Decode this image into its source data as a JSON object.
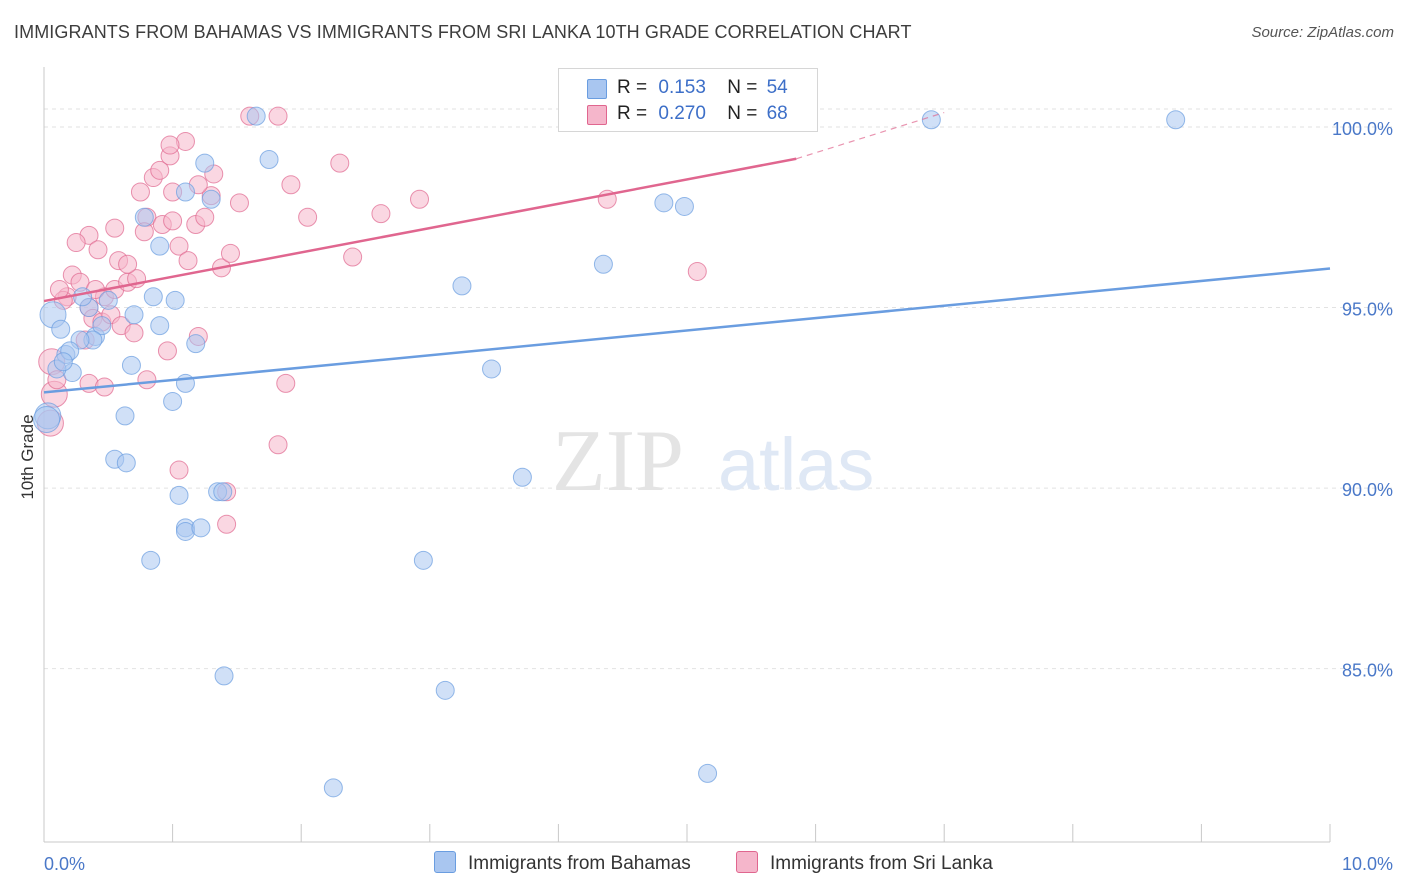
{
  "title": "IMMIGRANTS FROM BAHAMAS VS IMMIGRANTS FROM SRI LANKA 10TH GRADE CORRELATION CHART",
  "source": "Source: ZipAtlas.com",
  "watermark": {
    "zip": "ZIP",
    "atlas": "atlas"
  },
  "legend": {
    "rows": [
      {
        "r_label": "R =",
        "r_value": "0.153",
        "n_label": "N =",
        "n_value": "54",
        "color": "#a9c6f0"
      },
      {
        "r_label": "R =",
        "r_value": "0.270",
        "n_label": "N =",
        "n_value": "68",
        "color": "#f5b6cb"
      }
    ]
  },
  "bottom_legend": {
    "series1": "Immigrants from Bahamas",
    "series2": "Immigrants from Sri Lanka"
  },
  "chart_data": {
    "type": "scatter",
    "title": "IMMIGRANTS FROM BAHAMAS VS IMMIGRANTS FROM SRI LANKA 10TH GRADE CORRELATION CHART",
    "xlabel": "",
    "ylabel": "10th Grade",
    "xlim": [
      0,
      10
    ],
    "ylim": [
      80.2,
      101.8
    ],
    "x_tick_labels": [
      "0.0%",
      "10.0%"
    ],
    "y_ticks": [
      85,
      90,
      95,
      100
    ],
    "y_tick_labels": [
      "85.0%",
      "90.0%",
      "95.0%",
      "100.0%"
    ],
    "grid": true,
    "legend_position": "top-center",
    "series": [
      {
        "name": "Immigrants from Bahamas",
        "color": "#6a9de0",
        "fill": "#a9c6f0",
        "trend": {
          "x0": 0,
          "y0": 92.65,
          "x1": 10,
          "y1": 96.08
        },
        "points": [
          [
            0.07,
            94.8
          ],
          [
            0.13,
            94.4
          ],
          [
            0.17,
            93.7
          ],
          [
            0.22,
            93.2
          ],
          [
            0.03,
            92.0
          ],
          [
            0.02,
            91.9
          ],
          [
            0.35,
            95.0
          ],
          [
            0.4,
            94.2
          ],
          [
            0.45,
            94.5
          ],
          [
            0.38,
            94.1
          ],
          [
            0.28,
            94.1
          ],
          [
            0.5,
            95.2
          ],
          [
            0.9,
            96.7
          ],
          [
            0.68,
            93.4
          ],
          [
            0.78,
            97.5
          ],
          [
            0.7,
            94.8
          ],
          [
            0.85,
            95.3
          ],
          [
            0.9,
            94.5
          ],
          [
            1.02,
            95.2
          ],
          [
            0.1,
            93.3
          ],
          [
            0.63,
            92.0
          ],
          [
            0.55,
            90.8
          ],
          [
            0.64,
            90.7
          ],
          [
            1.0,
            92.4
          ],
          [
            1.1,
            92.9
          ],
          [
            1.18,
            94.0
          ],
          [
            1.05,
            89.8
          ],
          [
            1.1,
            88.9
          ],
          [
            1.1,
            88.8
          ],
          [
            1.22,
            88.9
          ],
          [
            1.35,
            89.9
          ],
          [
            1.39,
            89.9
          ],
          [
            0.83,
            88.0
          ],
          [
            1.4,
            84.8
          ],
          [
            1.75,
            99.1
          ],
          [
            1.25,
            99.0
          ],
          [
            1.65,
            100.3
          ],
          [
            1.1,
            98.2
          ],
          [
            1.3,
            98.0
          ],
          [
            2.25,
            81.7
          ],
          [
            2.95,
            88.0
          ],
          [
            3.12,
            84.4
          ],
          [
            3.25,
            95.6
          ],
          [
            3.48,
            93.3
          ],
          [
            3.72,
            90.3
          ],
          [
            4.35,
            96.2
          ],
          [
            4.82,
            97.9
          ],
          [
            4.98,
            97.8
          ],
          [
            5.16,
            82.1
          ],
          [
            6.9,
            100.2
          ],
          [
            8.8,
            100.2
          ],
          [
            0.3,
            95.3
          ],
          [
            0.2,
            93.8
          ],
          [
            0.15,
            93.5
          ]
        ]
      },
      {
        "name": "Immigrants from Sri Lanka",
        "color": "#e0668f",
        "fill": "#f5b6cb",
        "trend": {
          "x0": 0,
          "y0": 95.18,
          "x1": 5.85,
          "y1": 99.12
        },
        "trend_dashed": {
          "x0": 5.85,
          "y0": 99.12,
          "x1": 7.0,
          "y1": 100.4
        },
        "points": [
          [
            0.06,
            93.5
          ],
          [
            0.08,
            92.6
          ],
          [
            0.05,
            91.8
          ],
          [
            0.1,
            93.0
          ],
          [
            0.18,
            95.3
          ],
          [
            0.22,
            95.9
          ],
          [
            0.28,
            95.7
          ],
          [
            0.35,
            95.0
          ],
          [
            0.32,
            94.1
          ],
          [
            0.38,
            94.7
          ],
          [
            0.45,
            94.6
          ],
          [
            0.47,
            95.3
          ],
          [
            0.55,
            95.5
          ],
          [
            0.65,
            95.7
          ],
          [
            0.58,
            96.3
          ],
          [
            0.72,
            95.8
          ],
          [
            0.52,
            94.8
          ],
          [
            0.6,
            94.5
          ],
          [
            0.35,
            97.0
          ],
          [
            0.42,
            96.6
          ],
          [
            0.55,
            97.2
          ],
          [
            0.65,
            96.2
          ],
          [
            0.75,
            98.2
          ],
          [
            0.85,
            98.6
          ],
          [
            0.9,
            98.8
          ],
          [
            0.8,
            97.5
          ],
          [
            0.92,
            97.3
          ],
          [
            1.0,
            97.4
          ],
          [
            1.05,
            96.7
          ],
          [
            1.12,
            96.3
          ],
          [
            1.18,
            97.3
          ],
          [
            1.25,
            97.5
          ],
          [
            1.3,
            98.1
          ],
          [
            1.32,
            98.7
          ],
          [
            1.2,
            98.4
          ],
          [
            1.38,
            96.1
          ],
          [
            1.45,
            96.5
          ],
          [
            1.52,
            97.9
          ],
          [
            0.98,
            99.2
          ],
          [
            1.1,
            99.6
          ],
          [
            1.6,
            100.3
          ],
          [
            1.82,
            100.3
          ],
          [
            1.92,
            98.4
          ],
          [
            2.05,
            97.5
          ],
          [
            2.3,
            99.0
          ],
          [
            2.4,
            96.4
          ],
          [
            2.62,
            97.6
          ],
          [
            2.92,
            98.0
          ],
          [
            4.38,
            98.0
          ],
          [
            5.08,
            96.0
          ],
          [
            0.8,
            93.0
          ],
          [
            0.96,
            93.8
          ],
          [
            1.2,
            94.2
          ],
          [
            0.7,
            94.3
          ],
          [
            1.05,
            90.5
          ],
          [
            1.42,
            89.9
          ],
          [
            1.42,
            89.0
          ],
          [
            1.82,
            91.2
          ],
          [
            1.88,
            92.9
          ],
          [
            0.35,
            92.9
          ],
          [
            0.47,
            92.8
          ],
          [
            1.0,
            98.2
          ],
          [
            0.98,
            99.5
          ],
          [
            0.15,
            95.2
          ],
          [
            0.12,
            95.5
          ],
          [
            0.25,
            96.8
          ],
          [
            0.4,
            95.5
          ],
          [
            0.78,
            97.1
          ]
        ]
      }
    ]
  }
}
